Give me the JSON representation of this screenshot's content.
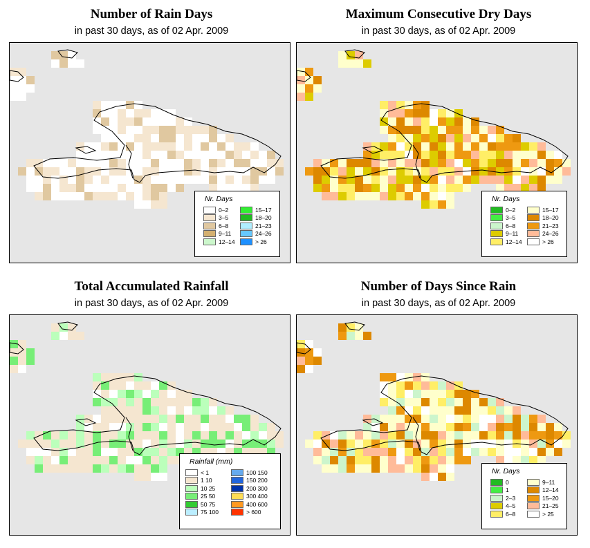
{
  "panels": [
    {
      "title": "Number of Rain Days",
      "subtitle": "in past 30 days, as of  02 Apr. 2009",
      "legend_title": "Nr. Days",
      "legend_left": [
        {
          "label": "0–2",
          "color": "#ffffff"
        },
        {
          "label": "3–5",
          "color": "#f5e6d0"
        },
        {
          "label": "6–8",
          "color": "#e0c8a0"
        },
        {
          "label": "9–11",
          "color": "#d4b070"
        },
        {
          "label": "12–14",
          "color": "#ccf7cc"
        }
      ],
      "legend_right": [
        {
          "label": "15–17",
          "color": "#33ee33"
        },
        {
          "label": "18–20",
          "color": "#22bb22"
        },
        {
          "label": "21–23",
          "color": "#b0eeff"
        },
        {
          "label": "24–26",
          "color": "#66c8ff"
        },
        {
          "label": "> 26",
          "color": "#1e90ff"
        }
      ]
    },
    {
      "title": "Maximum Consecutive Dry Days",
      "subtitle": "in past 30 days, as of  02 Apr. 2009",
      "legend_title": "Nr. Days",
      "legend_left": [
        {
          "label": "0–2",
          "color": "#22bb22"
        },
        {
          "label": "3–5",
          "color": "#44ee44"
        },
        {
          "label": "6–8",
          "color": "#ccf5cc"
        },
        {
          "label": "9–11",
          "color": "#ddcc00"
        },
        {
          "label": "12–14",
          "color": "#ffee66"
        }
      ],
      "legend_right": [
        {
          "label": "15–17",
          "color": "#ffffcc"
        },
        {
          "label": "18–20",
          "color": "#dd8800"
        },
        {
          "label": "21–23",
          "color": "#ee9911"
        },
        {
          "label": "24–26",
          "color": "#ffbb99"
        },
        {
          "label": "> 26",
          "color": "#ffffff"
        }
      ]
    },
    {
      "title": "Total Accumulated Rainfall",
      "subtitle": "in past 30 days, as of  02 Apr. 2009",
      "legend_title": "Rainfall (mm)",
      "legend_left": [
        {
          "label": "< 1",
          "color": "#ffffff"
        },
        {
          "label": "1   10",
          "color": "#f5e6d0"
        },
        {
          "label": "10   25",
          "color": "#bbffbb"
        },
        {
          "label": "25   50",
          "color": "#77ee77"
        },
        {
          "label": "50   75",
          "color": "#33cc33"
        },
        {
          "label": "75  100",
          "color": "#bbeeff"
        }
      ],
      "legend_right": [
        {
          "label": "100  150",
          "color": "#66aaee"
        },
        {
          "label": "150  200",
          "color": "#2266dd"
        },
        {
          "label": "200  300",
          "color": "#0033aa"
        },
        {
          "label": "300  400",
          "color": "#ffdd55"
        },
        {
          "label": "400  600",
          "color": "#ff9922"
        },
        {
          "label": "> 600",
          "color": "#ff3300"
        }
      ]
    },
    {
      "title": "Number of Days Since Rain",
      "subtitle": "in past 30 days, as of  02 Apr. 2009",
      "legend_title": "Nr. Days",
      "legend_left": [
        {
          "label": "0",
          "color": "#22bb22"
        },
        {
          "label": "1",
          "color": "#44ee44"
        },
        {
          "label": "2–3",
          "color": "#ccf5cc"
        },
        {
          "label": "4–5",
          "color": "#ddcc00"
        },
        {
          "label": "6–8",
          "color": "#ffee66"
        }
      ],
      "legend_right": [
        {
          "label": "9–11",
          "color": "#ffffcc"
        },
        {
          "label": "12–14",
          "color": "#dd8800"
        },
        {
          "label": "15–20",
          "color": "#ee9911"
        },
        {
          "label": "21–25",
          "color": "#ffbb99"
        },
        {
          "label": "> 25",
          "color": "#ffffff"
        }
      ]
    }
  ]
}
